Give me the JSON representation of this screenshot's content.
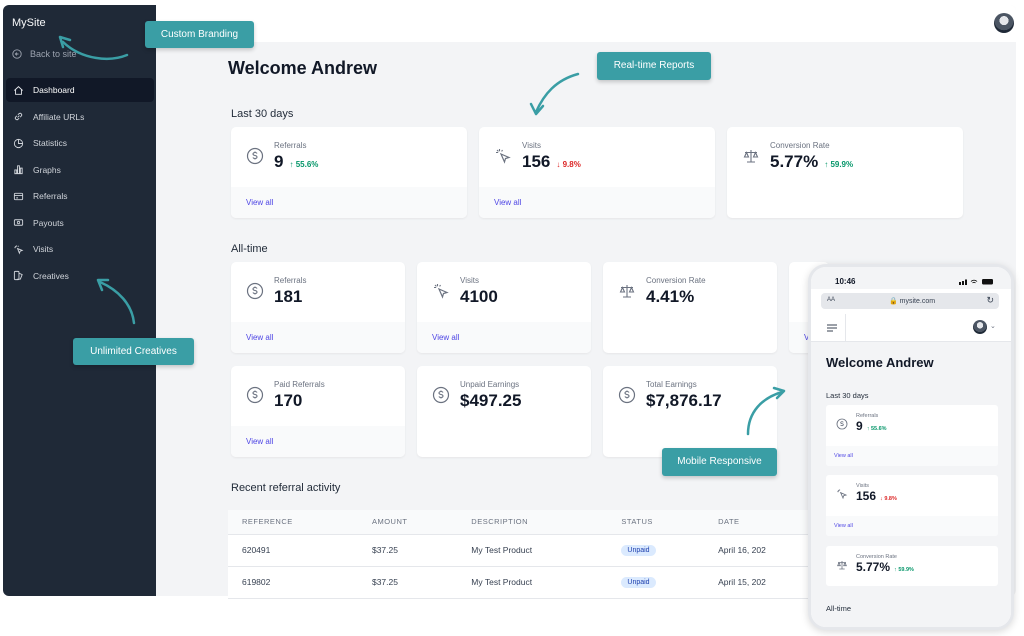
{
  "brand": "MySite",
  "sidebar": {
    "back": "Back to site",
    "items": [
      {
        "label": "Dashboard",
        "icon": "home-icon"
      },
      {
        "label": "Affiliate URLs",
        "icon": "link-icon"
      },
      {
        "label": "Statistics",
        "icon": "pie-chart-icon"
      },
      {
        "label": "Graphs",
        "icon": "bar-chart-icon"
      },
      {
        "label": "Referrals",
        "icon": "referrals-icon"
      },
      {
        "label": "Payouts",
        "icon": "payouts-icon"
      },
      {
        "label": "Visits",
        "icon": "cursor-click-icon"
      },
      {
        "label": "Creatives",
        "icon": "creatives-icon"
      }
    ]
  },
  "main": {
    "title": "Welcome Andrew",
    "last30_label": "Last 30 days",
    "alltime_label": "All-time",
    "view_all": "View all",
    "last30": [
      {
        "label": "Referrals",
        "value": "9",
        "trend": "55.6%",
        "dir": "up"
      },
      {
        "label": "Visits",
        "value": "156",
        "trend": "9.8%",
        "dir": "down"
      },
      {
        "label": "Conversion Rate",
        "value": "5.77%",
        "trend": "59.9%",
        "dir": "up"
      }
    ],
    "alltime": [
      {
        "label": "Referrals",
        "value": "181"
      },
      {
        "label": "Visits",
        "value": "4100"
      },
      {
        "label": "Conversion Rate",
        "value": "4.41%"
      },
      {
        "label": "Paid Referrals",
        "value": "170"
      },
      {
        "label": "Unpaid Earnings",
        "value": "$497.25"
      },
      {
        "label": "Total Earnings",
        "value": "$7,876.17"
      }
    ],
    "recent_label": "Recent referral activity",
    "table": {
      "headers": [
        "REFERENCE",
        "AMOUNT",
        "DESCRIPTION",
        "STATUS",
        "DATE"
      ],
      "rows": [
        [
          "620491",
          "$37.25",
          "My Test Product",
          "Unpaid",
          "April 16, 202"
        ],
        [
          "619802",
          "$37.25",
          "My Test Product",
          "Unpaid",
          "April 15, 202"
        ]
      ]
    }
  },
  "callouts": {
    "branding": "Custom Branding",
    "reports": "Real-time Reports",
    "creatives": "Unlimited Creatives",
    "mobile": "Mobile Responsive"
  },
  "phone": {
    "time": "10:46",
    "aa": "AA",
    "url": "mysite.com",
    "title": "Welcome Andrew",
    "last30_label": "Last 30 days",
    "alltime_label": "All-time",
    "view_all": "View all",
    "cards": [
      {
        "label": "Referrals",
        "value": "9",
        "trend": "55.6%",
        "dir": "up"
      },
      {
        "label": "Visits",
        "value": "156",
        "trend": "9.8%",
        "dir": "down"
      },
      {
        "label": "Conversion Rate",
        "value": "5.77%",
        "trend": "59.9%",
        "dir": "up"
      }
    ]
  },
  "colors": {
    "sidebar": "#1f2937",
    "accent": "#4f46e5",
    "callout": "#3a9ea5",
    "up": "#059669",
    "down": "#dc2626"
  }
}
